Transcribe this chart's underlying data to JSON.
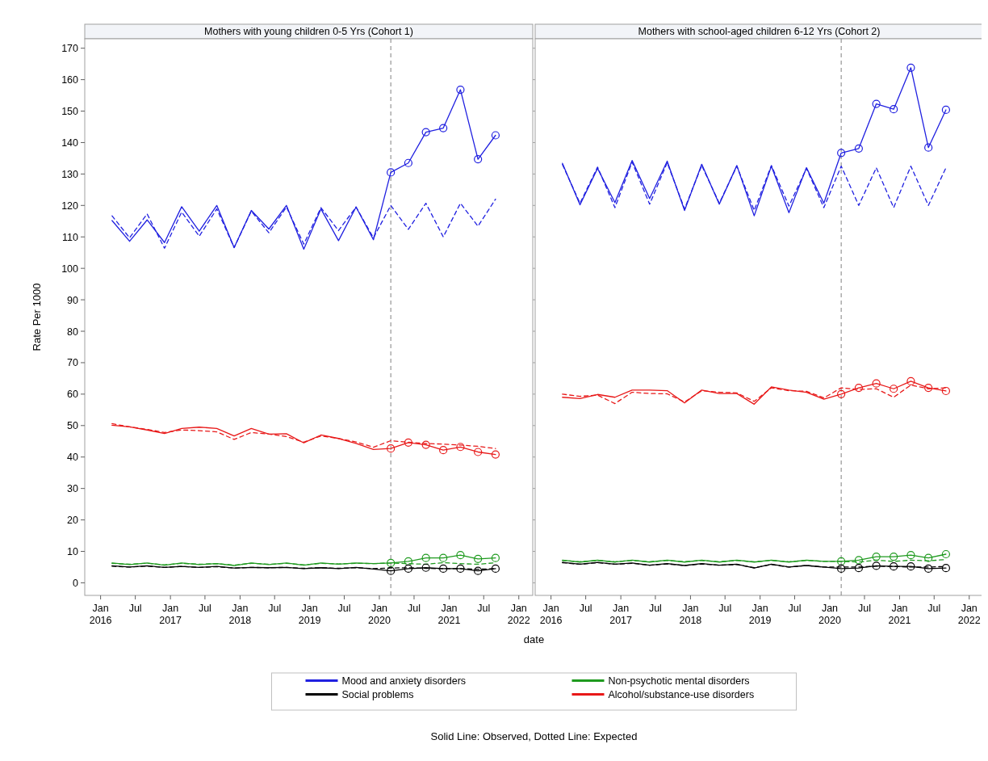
{
  "chart_data": [
    {
      "type": "line",
      "title": "Mothers with young children 0-5 Yrs (Cohort 1)",
      "xlabel": "date",
      "ylabel": "Rate Per 1000",
      "legend": "bottom",
      "annotations": [
        "Solid Line: Observed, Dotted Line: Expected"
      ],
      "x": [
        "2016-03",
        "2016-06",
        "2016-09",
        "2016-12",
        "2017-03",
        "2017-06",
        "2017-09",
        "2017-12",
        "2018-03",
        "2018-06",
        "2018-09",
        "2018-12",
        "2019-03",
        "2019-06",
        "2019-09",
        "2019-12",
        "2020-03",
        "2020-06",
        "2020-09",
        "2020-12",
        "2021-03",
        "2021-06",
        "2021-09"
      ],
      "xlim": [
        "2015-10-10",
        "2022-03-15"
      ],
      "xticks": [
        {
          "value": "2016-01",
          "label": "Jan 2016"
        },
        {
          "value": "2016-07",
          "label": "Jul"
        },
        {
          "value": "2017-01",
          "label": "Jan 2017"
        },
        {
          "value": "2017-07",
          "label": "Jul"
        },
        {
          "value": "2018-01",
          "label": "Jan 2018"
        },
        {
          "value": "2018-07",
          "label": "Jul"
        },
        {
          "value": "2019-01",
          "label": "Jan 2019"
        },
        {
          "value": "2019-07",
          "label": "Jul"
        },
        {
          "value": "2020-01",
          "label": "Jan 2020"
        },
        {
          "value": "2020-07",
          "label": "Jul"
        },
        {
          "value": "2021-01",
          "label": "Jan 2021"
        },
        {
          "value": "2021-07",
          "label": "Jul"
        },
        {
          "value": "2022-01",
          "label": "Jan 2022"
        }
      ],
      "ylim": [
        -4,
        173
      ],
      "yticks": [
        0,
        10,
        20,
        30,
        40,
        50,
        60,
        70,
        80,
        90,
        100,
        110,
        120,
        130,
        140,
        150,
        160,
        170
      ],
      "ref_lines": [
        {
          "axis": "x",
          "value": "2020-03",
          "color": "#808080",
          "line_style": "dashed"
        }
      ],
      "series": [
        {
          "name": "Mood and anxiety disorders",
          "color": "#2020e0",
          "line_style": "solid",
          "values": [
            115.2,
            108.6,
            115.4,
            108.2,
            119.6,
            111.8,
            120.0,
            106.6,
            118.4,
            112.5,
            120.0,
            106.1,
            118.9,
            108.8,
            119.5,
            109.1,
            130.5,
            133.5,
            143.3,
            144.6,
            156.8,
            134.7,
            142.3
          ]
        },
        {
          "name": "Non-psychotic mental disorders",
          "color": "#1e9a1e",
          "line_style": "solid",
          "values": [
            6.3,
            5.8,
            6.3,
            5.6,
            6.3,
            5.8,
            6.1,
            5.5,
            6.3,
            5.8,
            6.3,
            5.6,
            6.3,
            5.9,
            6.3,
            6.1,
            6.3,
            6.8,
            7.9,
            7.9,
            8.8,
            7.6,
            7.9
          ]
        },
        {
          "name": "Social problems",
          "color": "#000000",
          "line_style": "solid",
          "values": [
            5.4,
            5.0,
            5.4,
            4.9,
            5.2,
            4.9,
            5.2,
            4.7,
            4.9,
            4.8,
            4.9,
            4.5,
            4.8,
            4.5,
            4.9,
            4.4,
            3.8,
            4.5,
            4.8,
            4.5,
            4.5,
            3.8,
            4.5
          ]
        },
        {
          "name": "Alcohol/substance-use disorders",
          "color": "#e81818",
          "line_style": "solid",
          "values": [
            50.1,
            49.6,
            48.6,
            47.5,
            49.1,
            49.5,
            49.1,
            46.7,
            49.1,
            47.3,
            47.4,
            44.5,
            47.0,
            45.9,
            44.3,
            42.4,
            42.7,
            44.6,
            43.9,
            42.2,
            43.2,
            41.6,
            40.8
          ]
        },
        {
          "color": "#2020e0",
          "line_style": "dashed",
          "values": [
            116.7,
            109.7,
            117.3,
            106.4,
            117.9,
            110.2,
            118.9,
            106.6,
            118.2,
            111.3,
            119.5,
            107.7,
            119.3,
            112.0,
            119.5,
            109.7,
            120.0,
            112.4,
            120.7,
            110.0,
            120.7,
            113.4,
            122.0
          ]
        },
        {
          "color": "#1e9a1e",
          "line_style": "dashed",
          "values": [
            6.2,
            5.9,
            6.2,
            5.7,
            6.2,
            5.9,
            6.1,
            5.6,
            6.2,
            5.9,
            6.2,
            5.7,
            6.2,
            6.0,
            6.2,
            6.1,
            6.3,
            6.1,
            5.9,
            6.4,
            6.1,
            5.9,
            6.4
          ]
        },
        {
          "color": "#000000",
          "line_style": "dashed",
          "values": [
            5.3,
            5.0,
            5.3,
            4.9,
            5.2,
            4.9,
            5.1,
            4.7,
            4.9,
            4.8,
            4.9,
            4.6,
            4.8,
            4.6,
            4.8,
            4.5,
            4.7,
            4.8,
            4.6,
            4.5,
            4.5,
            4.3,
            4.5
          ]
        },
        {
          "color": "#e81818",
          "line_style": "dashed",
          "values": [
            50.6,
            49.6,
            48.8,
            47.8,
            48.6,
            48.4,
            48.0,
            45.6,
            47.8,
            47.3,
            46.5,
            44.7,
            46.7,
            45.9,
            44.8,
            43.1,
            45.2,
            44.7,
            44.3,
            44.1,
            43.8,
            43.4,
            42.7
          ]
        },
        {
          "type": "scatter",
          "marker": "circle",
          "color": "#2020e0",
          "x": [
            "2020-03",
            "2020-06",
            "2020-09",
            "2020-12",
            "2021-03",
            "2021-06",
            "2021-09"
          ],
          "values": [
            130.5,
            133.5,
            143.3,
            144.6,
            156.8,
            134.7,
            142.3
          ]
        },
        {
          "type": "scatter",
          "marker": "circle",
          "color": "#1e9a1e",
          "x": [
            "2020-03",
            "2020-06",
            "2020-09",
            "2020-12",
            "2021-03",
            "2021-06",
            "2021-09"
          ],
          "values": [
            6.3,
            6.8,
            7.9,
            7.9,
            8.8,
            7.6,
            7.9
          ]
        },
        {
          "type": "scatter",
          "marker": "circle",
          "color": "#000000",
          "x": [
            "2020-03",
            "2020-06",
            "2020-09",
            "2020-12",
            "2021-03",
            "2021-06",
            "2021-09"
          ],
          "values": [
            3.8,
            4.5,
            4.8,
            4.5,
            4.5,
            3.8,
            4.5
          ]
        },
        {
          "type": "scatter",
          "marker": "circle",
          "color": "#e81818",
          "x": [
            "2020-03",
            "2020-06",
            "2020-09",
            "2020-12",
            "2021-03",
            "2021-06",
            "2021-09"
          ],
          "values": [
            42.7,
            44.6,
            43.9,
            42.2,
            43.2,
            41.6,
            40.8
          ]
        }
      ]
    },
    {
      "type": "line",
      "title": "Mothers with school-aged children 6-12 Yrs (Cohort 2)",
      "tick_labels": "x",
      "x": [
        "2016-03",
        "2016-06",
        "2016-09",
        "2016-12",
        "2017-03",
        "2017-06",
        "2017-09",
        "2017-12",
        "2018-03",
        "2018-06",
        "2018-09",
        "2018-12",
        "2019-03",
        "2019-06",
        "2019-09",
        "2019-12",
        "2020-03",
        "2020-06",
        "2020-09",
        "2020-12",
        "2021-03",
        "2021-06",
        "2021-09"
      ],
      "xlim": [
        "2015-10-10",
        "2022-03-15"
      ],
      "xticks": [
        {
          "value": "2016-01",
          "label": "Jan 2016"
        },
        {
          "value": "2016-07",
          "label": "Jul"
        },
        {
          "value": "2017-01",
          "label": "Jan 2017"
        },
        {
          "value": "2017-07",
          "label": "Jul"
        },
        {
          "value": "2018-01",
          "label": "Jan 2018"
        },
        {
          "value": "2018-07",
          "label": "Jul"
        },
        {
          "value": "2019-01",
          "label": "Jan 2019"
        },
        {
          "value": "2019-07",
          "label": "Jul"
        },
        {
          "value": "2020-01",
          "label": "Jan 2020"
        },
        {
          "value": "2020-07",
          "label": "Jul"
        },
        {
          "value": "2021-01",
          "label": "Jan 2021"
        },
        {
          "value": "2021-07",
          "label": "Jul"
        },
        {
          "value": "2022-01",
          "label": "Jan 2022"
        }
      ],
      "ylim": [
        -4,
        173
      ],
      "yticks": [
        0,
        10,
        20,
        30,
        40,
        50,
        60,
        70,
        80,
        90,
        100,
        110,
        120,
        130,
        140,
        150,
        160,
        170
      ],
      "ref_lines": [
        {
          "axis": "x",
          "value": "2020-03",
          "color": "#808080",
          "line_style": "dashed"
        }
      ],
      "series": [
        {
          "color": "#2020e0",
          "line_style": "solid",
          "values": [
            133.4,
            120.2,
            131.8,
            120.9,
            134.3,
            122.2,
            134.1,
            118.4,
            133.1,
            120.4,
            132.7,
            116.7,
            132.5,
            117.7,
            132.0,
            120.7,
            136.7,
            138.1,
            152.3,
            150.6,
            163.8,
            138.4,
            150.4
          ]
        },
        {
          "color": "#1e9a1e",
          "line_style": "solid",
          "values": [
            7.2,
            6.6,
            7.2,
            6.6,
            7.2,
            6.6,
            7.2,
            6.6,
            7.2,
            6.6,
            7.2,
            6.6,
            7.2,
            6.6,
            7.2,
            6.8,
            6.8,
            7.2,
            8.3,
            8.3,
            8.8,
            7.9,
            9.1
          ]
        },
        {
          "color": "#000000",
          "line_style": "solid",
          "values": [
            6.5,
            5.9,
            6.5,
            5.9,
            6.3,
            5.6,
            6.1,
            5.5,
            6.1,
            5.6,
            5.9,
            4.7,
            5.9,
            5.0,
            5.5,
            5.0,
            4.5,
            4.7,
            5.4,
            5.2,
            5.2,
            4.5,
            4.7
          ]
        },
        {
          "color": "#e81818",
          "line_style": "solid",
          "values": [
            59.0,
            58.6,
            59.9,
            59.0,
            61.3,
            61.3,
            61.1,
            57.2,
            61.3,
            60.2,
            60.2,
            56.8,
            62.3,
            61.3,
            60.6,
            58.4,
            60.0,
            62.0,
            63.4,
            61.7,
            64.1,
            62.0,
            61.0
          ]
        },
        {
          "color": "#2020e0",
          "line_style": "dashed",
          "values": [
            133.0,
            120.7,
            132.2,
            119.3,
            133.8,
            120.4,
            133.6,
            118.9,
            132.7,
            120.7,
            132.5,
            118.4,
            132.7,
            119.8,
            131.8,
            119.3,
            132.5,
            120.0,
            132.0,
            119.3,
            132.5,
            120.0,
            132.0
          ]
        },
        {
          "color": "#1e9a1e",
          "line_style": "dashed",
          "values": [
            7.1,
            6.7,
            7.1,
            6.7,
            7.1,
            6.7,
            7.1,
            6.7,
            7.1,
            6.7,
            7.1,
            6.7,
            7.1,
            6.7,
            7.1,
            6.8,
            6.8,
            6.6,
            7.2,
            6.8,
            7.2,
            7.0,
            7.4
          ]
        },
        {
          "color": "#000000",
          "line_style": "dashed",
          "values": [
            6.4,
            5.9,
            6.4,
            5.9,
            6.2,
            5.6,
            6.0,
            5.5,
            6.0,
            5.6,
            5.8,
            4.8,
            5.8,
            5.0,
            5.5,
            5.0,
            5.0,
            5.0,
            5.3,
            5.2,
            5.0,
            5.0,
            5.2
          ]
        },
        {
          "color": "#e81818",
          "line_style": "dashed",
          "values": [
            60.0,
            59.3,
            59.7,
            57.0,
            60.6,
            60.2,
            60.1,
            57.5,
            61.1,
            60.6,
            60.4,
            57.7,
            62.0,
            61.1,
            60.9,
            58.8,
            62.0,
            61.5,
            61.7,
            59.0,
            62.9,
            61.7,
            62.0
          ]
        },
        {
          "type": "scatter",
          "marker": "circle",
          "color": "#2020e0",
          "x": [
            "2020-03",
            "2020-06",
            "2020-09",
            "2020-12",
            "2021-03",
            "2021-06",
            "2021-09"
          ],
          "values": [
            136.7,
            138.1,
            152.3,
            150.6,
            163.8,
            138.4,
            150.4
          ]
        },
        {
          "type": "scatter",
          "marker": "circle",
          "color": "#1e9a1e",
          "x": [
            "2020-03",
            "2020-06",
            "2020-09",
            "2020-12",
            "2021-03",
            "2021-06",
            "2021-09"
          ],
          "values": [
            6.8,
            7.2,
            8.3,
            8.3,
            8.8,
            7.9,
            9.1
          ]
        },
        {
          "type": "scatter",
          "marker": "circle",
          "color": "#000000",
          "x": [
            "2020-03",
            "2020-06",
            "2020-09",
            "2020-12",
            "2021-03",
            "2021-06",
            "2021-09"
          ],
          "values": [
            4.5,
            4.7,
            5.4,
            5.2,
            5.2,
            4.5,
            4.7
          ]
        },
        {
          "type": "scatter",
          "marker": "circle",
          "color": "#e81818",
          "x": [
            "2020-03",
            "2020-06",
            "2020-09",
            "2020-12",
            "2021-03",
            "2021-06",
            "2021-09"
          ],
          "values": [
            60.0,
            62.0,
            63.4,
            61.7,
            64.1,
            62.0,
            61.0
          ]
        }
      ]
    }
  ]
}
